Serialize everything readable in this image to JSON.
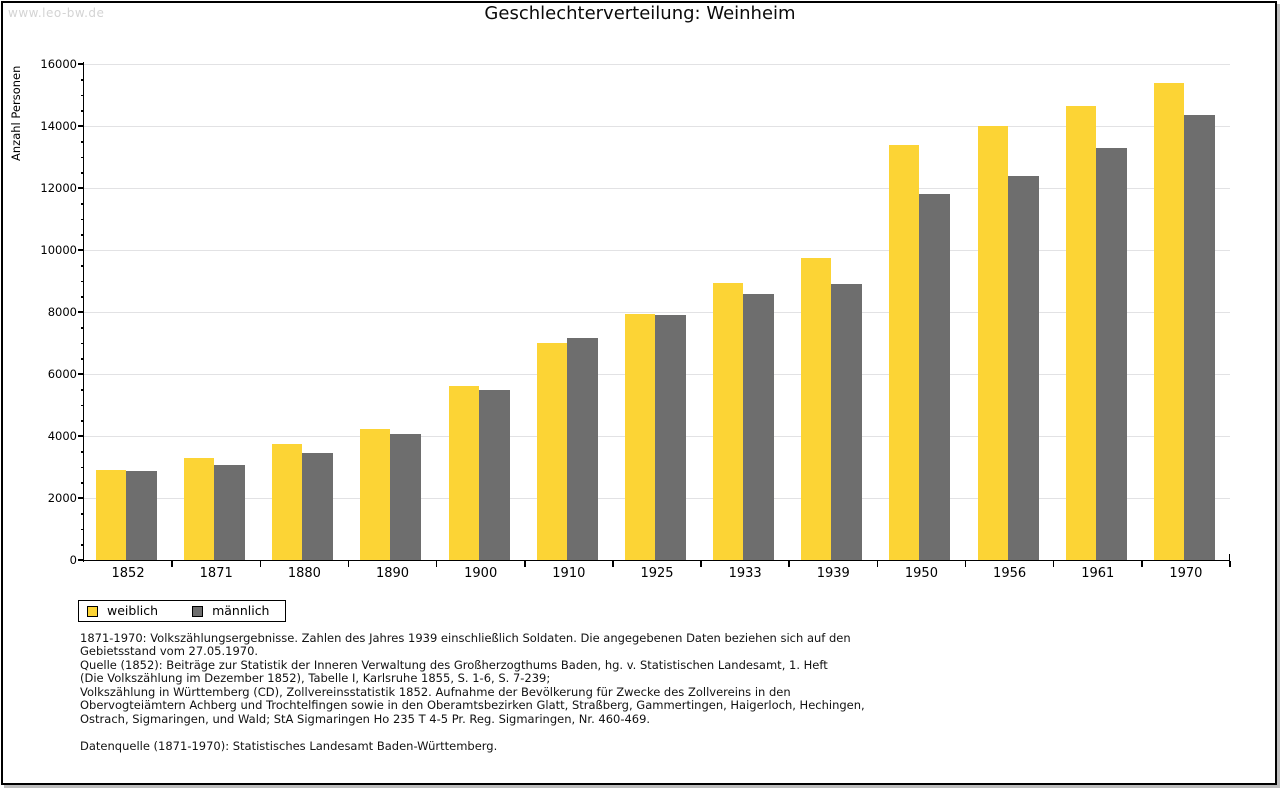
{
  "watermark": "www.leo-bw.de",
  "title": "Geschlechterverteilung: Weinheim",
  "chart_data": {
    "type": "bar",
    "title": "Geschlechterverteilung: Weinheim",
    "xlabel": "",
    "ylabel": "Anzahl Personen",
    "ylim": [
      0,
      16000
    ],
    "ytick_step": 2000,
    "y_minor_tick_step": 500,
    "grid": true,
    "legend_position": "bottom-left",
    "categories": [
      "1852",
      "1871",
      "1880",
      "1890",
      "1900",
      "1910",
      "1925",
      "1933",
      "1939",
      "1950",
      "1956",
      "1961",
      "1970"
    ],
    "series": [
      {
        "name": "weiblich",
        "color": "#fcd435",
        "values": [
          2900,
          3300,
          3730,
          4230,
          5600,
          7000,
          7950,
          8930,
          9750,
          13400,
          14000,
          14650,
          15400
        ]
      },
      {
        "name": "männlich",
        "color": "#6e6e6e",
        "values": [
          2880,
          3070,
          3460,
          4060,
          5500,
          7150,
          7900,
          8580,
          8890,
          11800,
          12400,
          13300,
          14350
        ]
      }
    ]
  },
  "legend": {
    "items": [
      {
        "label": "weiblich",
        "color": "#fcd435"
      },
      {
        "label": "männlich",
        "color": "#6e6e6e"
      }
    ]
  },
  "footnotes": [
    "1871-1970: Volkszählungsergebnisse. Zahlen des Jahres 1939 einschließlich Soldaten. Die angegebenen Daten beziehen sich auf den",
    "Gebietsstand vom 27.05.1970.",
    "Quelle (1852): Beiträge zur Statistik der Inneren Verwaltung des Großherzogthums Baden, hg. v. Statistischen Landesamt, 1. Heft",
    "(Die Volkszählung im Dezember 1852), Tabelle I, Karlsruhe 1855, S. 1-6, S. 7-239;",
    "Volkszählung in Württemberg (CD), Zollvereinsstatistik 1852. Aufnahme der Bevölkerung für Zwecke des Zollvereins in den",
    "Obervogteiämtern Achberg und Trochtelfingen sowie in den Oberamtsbezirken Glatt, Straßberg, Gammertingen, Haigerloch, Hechingen,",
    "Ostrach, Sigmaringen, und Wald; StA Sigmaringen Ho 235 T 4-5 Pr. Reg. Sigmaringen, Nr. 460-469."
  ],
  "datasource": "Datenquelle (1871-1970): Statistisches Landesamt Baden-Württemberg."
}
